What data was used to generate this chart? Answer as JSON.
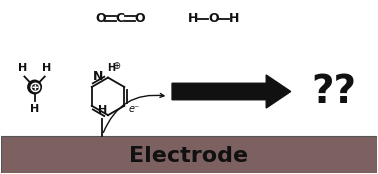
{
  "electrode_color": "#7d6060",
  "electrode_label": "Electrode",
  "electrode_label_fontsize": 16,
  "electrode_label_color": "#111111",
  "background_color": "#ffffff",
  "arrow_color": "#111111",
  "question_marks": "??",
  "question_marks_fontsize": 28,
  "electron_label": "e⁻",
  "h_label": "H",
  "figsize": [
    3.78,
    1.74
  ],
  "dpi": 100,
  "xlim": [
    0,
    10
  ],
  "ylim": [
    0,
    4.6
  ]
}
